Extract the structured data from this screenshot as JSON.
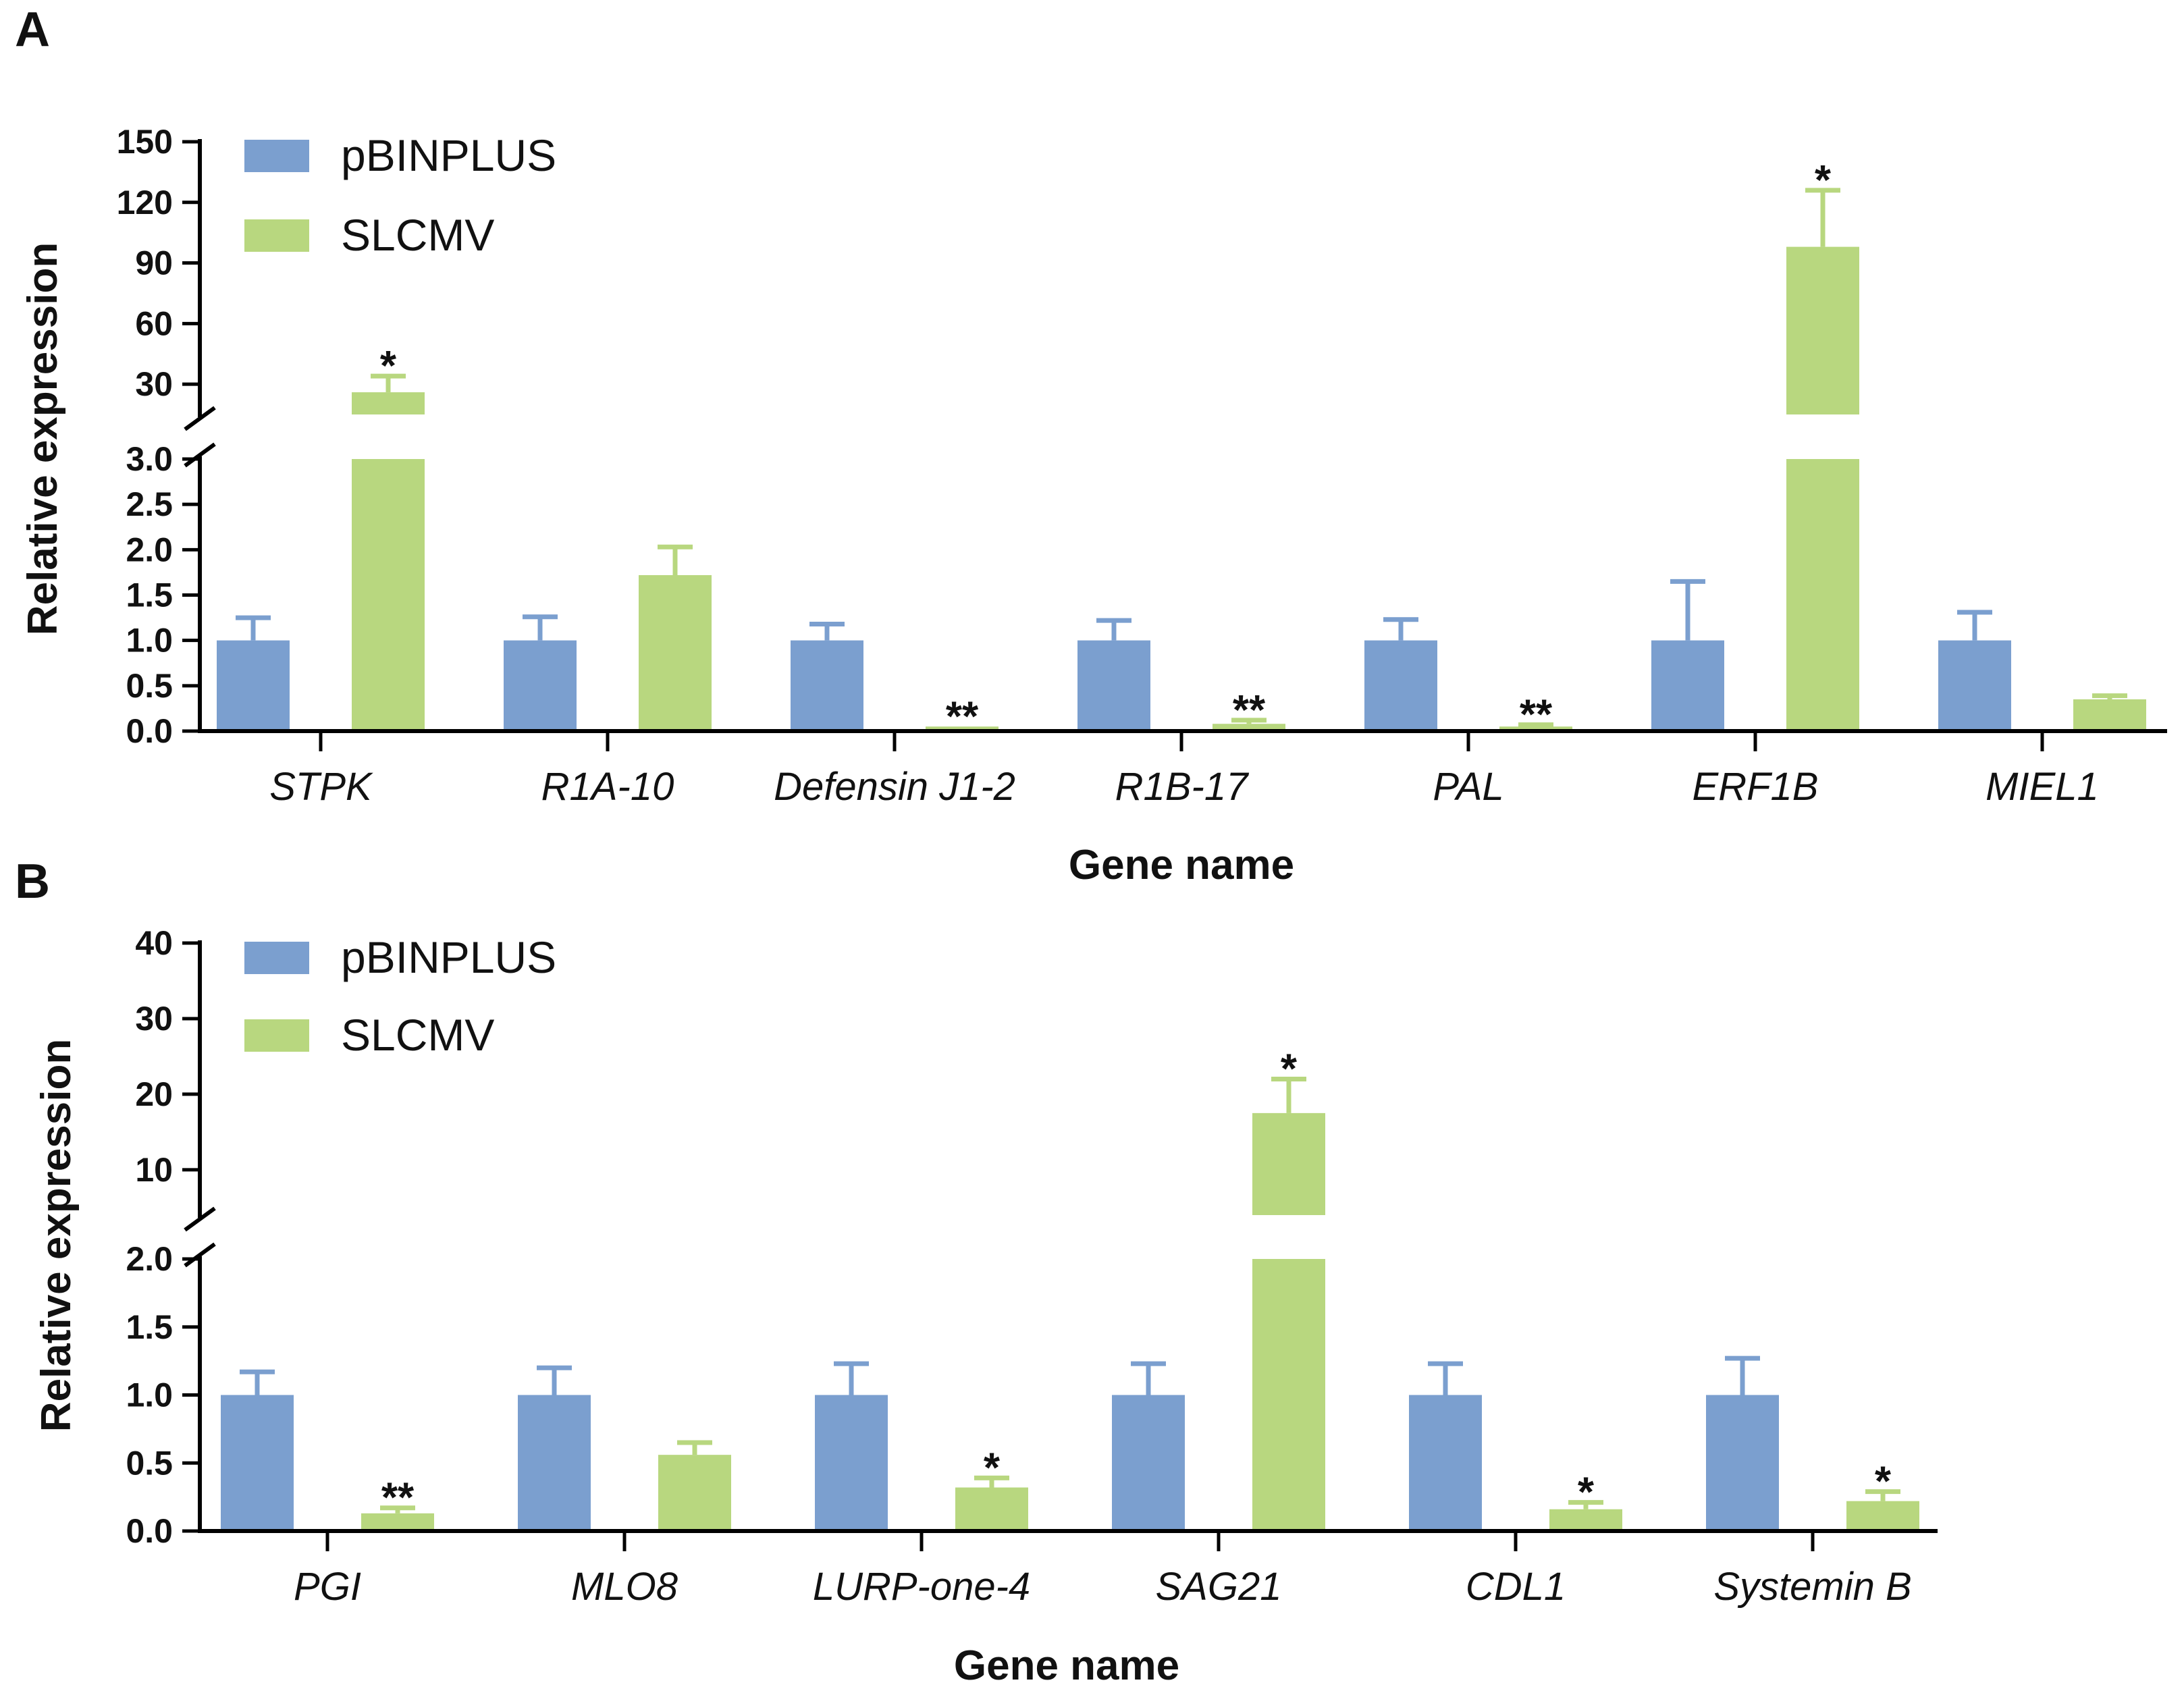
{
  "colors": {
    "pbinplus": "#7b9fcf",
    "slcmv": "#b8d77f",
    "axis": "#000000"
  },
  "chart_data": [
    {
      "panel": "A",
      "type": "bar",
      "ylabel": "Relative expression",
      "xlabel": "Gene name",
      "axis_break": true,
      "lower_ylim": [
        0,
        3
      ],
      "lower_ticks": [
        "0.0",
        "0.5",
        "1.0",
        "1.5",
        "2.0",
        "2.5",
        "3.0"
      ],
      "upper_ylim": [
        15,
        150
      ],
      "upper_ticks": [
        "30",
        "60",
        "90",
        "120",
        "150"
      ],
      "legend": [
        "pBINPLUS",
        "SLCMV"
      ],
      "categories": [
        "STPK",
        "R1A-10",
        "Defensin J1-2",
        "R1B-17",
        "PAL",
        "ERF1B",
        "MIEL1"
      ],
      "series": [
        {
          "name": "pBINPLUS",
          "values": [
            1.0,
            1.0,
            1.0,
            1.0,
            1.0,
            1.0,
            1.0
          ],
          "errors": [
            0.25,
            0.26,
            0.18,
            0.22,
            0.23,
            0.65,
            0.31
          ]
        },
        {
          "name": "SLCMV",
          "values": [
            26,
            1.72,
            0.05,
            0.08,
            0.05,
            98,
            0.35
          ],
          "errors": [
            8,
            0.31,
            0.0,
            0.04,
            0.02,
            28,
            0.04
          ]
        }
      ],
      "significance": [
        "*",
        "",
        "**",
        "**",
        "**",
        "*",
        ""
      ]
    },
    {
      "panel": "B",
      "type": "bar",
      "ylabel": "Relative expression",
      "xlabel": "Gene name",
      "axis_break": true,
      "lower_ylim": [
        0,
        2
      ],
      "lower_ticks": [
        "0.0",
        "0.5",
        "1.0",
        "1.5",
        "2.0"
      ],
      "upper_ylim": [
        4,
        40
      ],
      "upper_ticks": [
        "10",
        "20",
        "30",
        "40"
      ],
      "legend": [
        "pBINPLUS",
        "SLCMV"
      ],
      "categories": [
        "PGI",
        "MLO8",
        "LURP-one-4",
        "SAG21",
        "CDL1",
        "Systemin B"
      ],
      "series": [
        {
          "name": "pBINPLUS",
          "values": [
            1.0,
            1.0,
            1.0,
            1.0,
            1.0,
            1.0
          ],
          "errors": [
            0.17,
            0.2,
            0.23,
            0.23,
            0.23,
            0.27
          ]
        },
        {
          "name": "SLCMV",
          "values": [
            0.13,
            0.56,
            0.32,
            17.5,
            0.16,
            0.22
          ],
          "errors": [
            0.04,
            0.09,
            0.07,
            4.5,
            0.05,
            0.07
          ]
        }
      ],
      "significance": [
        "**",
        "",
        "*",
        "*",
        "*",
        "*"
      ]
    }
  ]
}
